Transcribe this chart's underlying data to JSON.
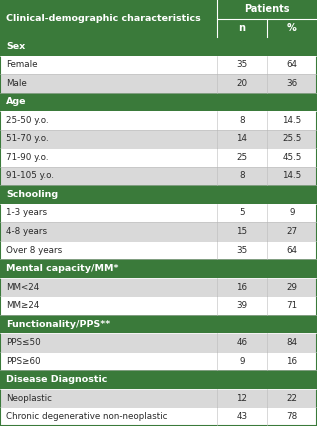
{
  "title_col": "Clinical-demographic characteristics",
  "col_n": "n",
  "col_pct": "%",
  "patients_label": "Patients",
  "header_bg": "#3a7a3a",
  "header_text": "#ffffff",
  "subheader_bg": "#3a7a3a",
  "subheader_text": "#ffffff",
  "row_odd_bg": "#ffffff",
  "row_even_bg": "#d9d9d9",
  "row_text": "#2a2a2a",
  "border_color": "#3a7a3a",
  "border_inner": "#aaaaaa",
  "sections": [
    {
      "label": "Sex",
      "rows": [
        {
          "char": "Female",
          "n": "35",
          "pct": "64"
        },
        {
          "char": "Male",
          "n": "20",
          "pct": "36"
        }
      ]
    },
    {
      "label": "Age",
      "rows": [
        {
          "char": "25-50 y.o.",
          "n": "8",
          "pct": "14.5"
        },
        {
          "char": "51-70 y.o.",
          "n": "14",
          "pct": "25.5"
        },
        {
          "char": "71-90 y.o.",
          "n": "25",
          "pct": "45.5"
        },
        {
          "char": "91-105 y.o.",
          "n": "8",
          "pct": "14.5"
        }
      ]
    },
    {
      "label": "Schooling",
      "rows": [
        {
          "char": "1-3 years",
          "n": "5",
          "pct": "9"
        },
        {
          "char": "4-8 years",
          "n": "15",
          "pct": "27"
        },
        {
          "char": "Over 8 years",
          "n": "35",
          "pct": "64"
        }
      ]
    },
    {
      "label": "Mental capacity/MM*",
      "rows": [
        {
          "char": "MM<24",
          "n": "16",
          "pct": "29"
        },
        {
          "char": "MM≥24",
          "n": "39",
          "pct": "71"
        }
      ]
    },
    {
      "label": "Functionality/PPS**",
      "rows": [
        {
          "char": "PPS≤50",
          "n": "46",
          "pct": "84"
        },
        {
          "char": "PPS≥60",
          "n": "9",
          "pct": "16"
        }
      ]
    },
    {
      "label": "Disease Diagnostic",
      "rows": [
        {
          "char": "Neoplastic",
          "n": "12",
          "pct": "22"
        },
        {
          "char": "Chronic degenerative non-neoplastic",
          "n": "43",
          "pct": "78"
        }
      ]
    }
  ]
}
